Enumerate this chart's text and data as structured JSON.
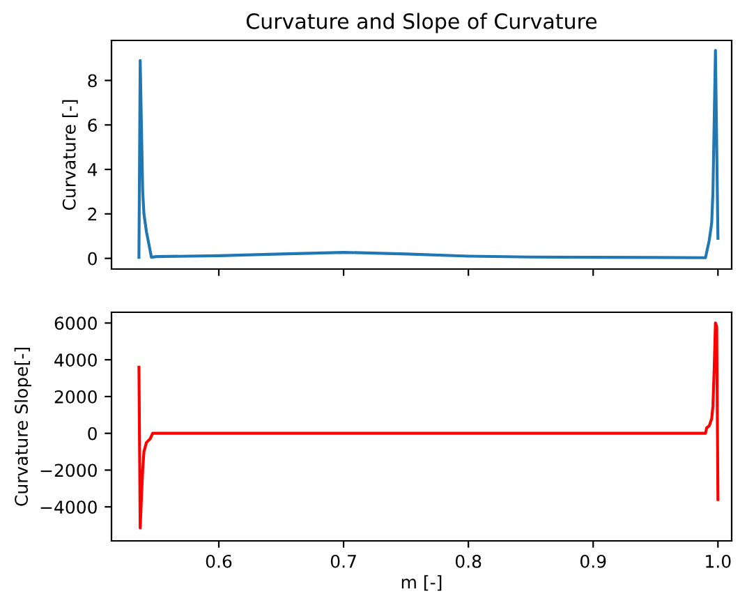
{
  "chart_data": [
    {
      "type": "line",
      "title": "Curvature and Slope of Curvature",
      "ylabel": "Curvature [-]",
      "tick_labels": "y",
      "grid": false,
      "xlim": [
        0.514,
        1.011
      ],
      "xticks": [
        0.6,
        0.7,
        0.8,
        0.9,
        1.0
      ],
      "ylim": [
        -0.48,
        9.8
      ],
      "yticks": [
        0,
        2,
        4,
        6,
        8
      ],
      "series": [
        {
          "color": "#1f77b4",
          "x": [
            0.536,
            0.537,
            0.539,
            0.54,
            0.542,
            0.546,
            0.55,
            0.6,
            0.65,
            0.7,
            0.75,
            0.8,
            0.85,
            0.9,
            0.95,
            0.99,
            0.993,
            0.995,
            0.996,
            0.998,
            1.0
          ],
          "values": [
            0.05,
            8.9,
            3.0,
            2.0,
            1.2,
            0.05,
            0.08,
            0.12,
            0.2,
            0.27,
            0.2,
            0.1,
            0.06,
            0.05,
            0.04,
            0.03,
            0.8,
            1.6,
            3.0,
            9.35,
            0.9
          ]
        }
      ]
    },
    {
      "type": "line",
      "xlabel": "m [-]",
      "ylabel": "Curvature Slope[-]",
      "grid": false,
      "xlim": [
        0.514,
        1.011
      ],
      "xticks": [
        0.6,
        0.7,
        0.8,
        0.9,
        {
          "value": 1.0,
          "label": "1.0"
        }
      ],
      "ylim": [
        -5850,
        6585
      ],
      "yticks": [
        {
          "value": -4000,
          "label": "−4000"
        },
        {
          "value": -2000,
          "label": "−2000"
        },
        0,
        2000,
        4000,
        6000
      ],
      "series": [
        {
          "color": "#ff0000",
          "x": [
            0.536,
            0.537,
            0.538,
            0.539,
            0.54,
            0.542,
            0.545,
            0.547,
            0.99,
            0.991,
            0.993,
            0.995,
            0.996,
            0.997,
            0.998,
            0.999,
            1.0
          ],
          "values": [
            3600,
            -5150,
            -3500,
            -2000,
            -1000,
            -500,
            -300,
            0,
            0,
            300,
            400,
            800,
            1500,
            3500,
            6000,
            5800,
            -3600
          ]
        }
      ]
    }
  ]
}
